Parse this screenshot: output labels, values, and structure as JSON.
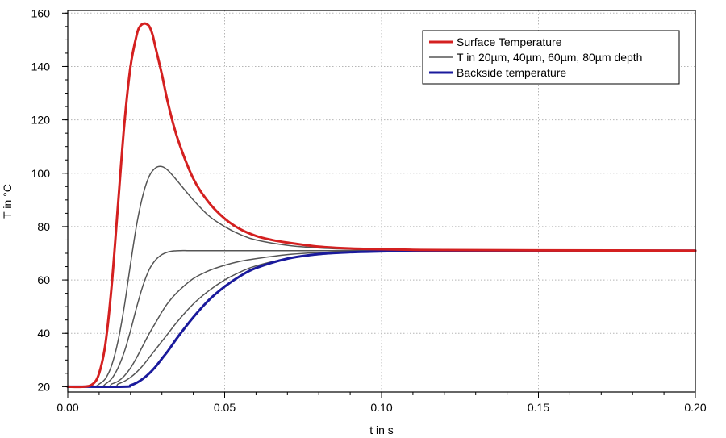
{
  "chart_data": {
    "type": "line",
    "title": "",
    "xlabel": "t in s",
    "ylabel": "T in °C",
    "xlim": [
      0,
      0.2
    ],
    "ylim": [
      18,
      161
    ],
    "xticks": [
      0,
      0.05,
      0.1,
      0.15,
      0.2
    ],
    "xtick_labels": [
      "0.00",
      "0.05",
      "0.10",
      "0.15",
      "0.20"
    ],
    "yticks": [
      20,
      40,
      60,
      80,
      100,
      120,
      140,
      160
    ],
    "ytick_labels": [
      "20",
      "40",
      "60",
      "80",
      "100",
      "120",
      "140",
      "160"
    ],
    "grid": true,
    "legend_position": "top-right",
    "legend": [
      {
        "label": "Surface Temperature",
        "color": "#d42020"
      },
      {
        "label": "T in 20µm, 40µm, 60µm, 80µm depth",
        "color": "#555555"
      },
      {
        "label": "Backside temperature",
        "color": "#1a1a9c"
      }
    ],
    "series": [
      {
        "name": "Surface Temperature",
        "color": "#d42020",
        "width": 3,
        "x": [
          0,
          0.005,
          0.008,
          0.01,
          0.012,
          0.014,
          0.016,
          0.018,
          0.02,
          0.022,
          0.023,
          0.024,
          0.025,
          0.026,
          0.027,
          0.028,
          0.03,
          0.032,
          0.035,
          0.04,
          0.045,
          0.05,
          0.055,
          0.06,
          0.065,
          0.07,
          0.08,
          0.09,
          0.1,
          0.11,
          0.12,
          0.15,
          0.2
        ],
        "y": [
          20,
          20,
          21,
          25,
          36,
          58,
          88,
          118,
          140,
          152,
          155,
          156,
          156,
          155,
          152,
          147,
          137,
          126,
          113,
          98,
          89,
          83,
          79,
          76.5,
          75,
          74,
          72.5,
          71.8,
          71.5,
          71.3,
          71.2,
          71.1,
          71
        ]
      },
      {
        "name": "T in 20µm depth",
        "color": "#555555",
        "width": 1.5,
        "x": [
          0,
          0.008,
          0.01,
          0.012,
          0.014,
          0.016,
          0.018,
          0.02,
          0.022,
          0.024,
          0.026,
          0.028,
          0.03,
          0.032,
          0.035,
          0.04,
          0.045,
          0.05,
          0.055,
          0.06,
          0.07,
          0.08,
          0.09,
          0.1,
          0.12,
          0.15,
          0.2
        ],
        "y": [
          20,
          20,
          21,
          23,
          28,
          37,
          50,
          66,
          81,
          92,
          99,
          102,
          102.5,
          101,
          97,
          90,
          84,
          80,
          77,
          75,
          73,
          72,
          71.5,
          71.3,
          71.2,
          71.1,
          71
        ]
      },
      {
        "name": "T in 40µm depth",
        "color": "#555555",
        "width": 1.5,
        "x": [
          0,
          0.01,
          0.012,
          0.014,
          0.016,
          0.018,
          0.02,
          0.022,
          0.024,
          0.026,
          0.028,
          0.03,
          0.032,
          0.034,
          0.036,
          0.038,
          0.04,
          0.045,
          0.05,
          0.06,
          0.08,
          0.1,
          0.15,
          0.2
        ],
        "y": [
          20,
          20,
          21,
          23,
          27,
          33,
          41,
          50,
          58,
          64,
          67.5,
          69.5,
          70.5,
          70.9,
          71,
          71,
          71,
          71,
          71,
          71,
          71,
          71,
          71,
          71
        ]
      },
      {
        "name": "T in 60µm depth",
        "color": "#555555",
        "width": 1.5,
        "x": [
          0,
          0.012,
          0.014,
          0.016,
          0.018,
          0.02,
          0.022,
          0.024,
          0.026,
          0.028,
          0.03,
          0.032,
          0.035,
          0.04,
          0.045,
          0.05,
          0.055,
          0.06,
          0.07,
          0.08,
          0.09,
          0.1,
          0.12,
          0.15,
          0.2
        ],
        "y": [
          20,
          20,
          21,
          22,
          24,
          27,
          31,
          35.5,
          40,
          44,
          48,
          51.5,
          55.5,
          60.5,
          63.5,
          65.5,
          67,
          68,
          69.5,
          70.3,
          70.7,
          70.9,
          71,
          71,
          71
        ]
      },
      {
        "name": "T in 80µm depth",
        "color": "#555555",
        "width": 1.5,
        "x": [
          0,
          0.014,
          0.016,
          0.018,
          0.02,
          0.022,
          0.024,
          0.026,
          0.028,
          0.03,
          0.032,
          0.035,
          0.04,
          0.045,
          0.05,
          0.055,
          0.06,
          0.07,
          0.08,
          0.09,
          0.1,
          0.12,
          0.15,
          0.2
        ],
        "y": [
          20,
          20,
          21,
          22,
          23.5,
          25.5,
          28,
          31,
          34,
          37,
          40,
          44.5,
          51,
          56,
          60,
          63,
          65.3,
          68,
          69.5,
          70.3,
          70.7,
          70.9,
          71,
          71
        ]
      },
      {
        "name": "Backside temperature",
        "color": "#1a1a9c",
        "width": 3,
        "x": [
          0,
          0.018,
          0.02,
          0.022,
          0.024,
          0.026,
          0.028,
          0.03,
          0.032,
          0.035,
          0.04,
          0.045,
          0.05,
          0.055,
          0.06,
          0.07,
          0.08,
          0.09,
          0.1,
          0.11,
          0.12,
          0.15,
          0.2
        ],
        "y": [
          20,
          20,
          20.5,
          21.5,
          23,
          25,
          27.5,
          30.5,
          33.5,
          38.5,
          46,
          52.5,
          57.5,
          61.5,
          64.5,
          68,
          69.7,
          70.4,
          70.7,
          70.9,
          71,
          71,
          71
        ]
      }
    ]
  }
}
